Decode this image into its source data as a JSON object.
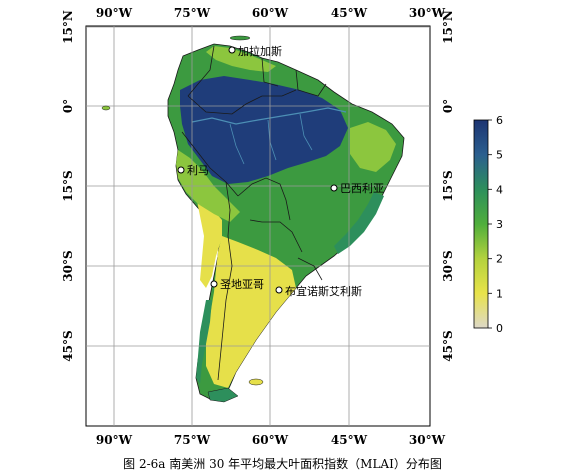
{
  "figure": {
    "caption": "图 2-6a 南美洲 30 年平均最大叶面积指数（MLAI）分布图"
  },
  "map": {
    "lon_ticks": [
      "90°W",
      "75°W",
      "60°W",
      "45°W",
      "30°W"
    ],
    "lat_ticks": [
      "15°N",
      "0°",
      "15°S",
      "30°S",
      "45°S"
    ],
    "cities": [
      {
        "name": "加拉加斯"
      },
      {
        "name": "利马"
      },
      {
        "name": "巴西利亚"
      },
      {
        "name": "圣地亚哥"
      },
      {
        "name": "布宜诺斯艾利斯"
      }
    ],
    "colorbar": {
      "ticks": [
        "0",
        "1",
        "2",
        "3",
        "4",
        "5",
        "6"
      ],
      "min": 0,
      "max": 6,
      "colors": [
        "#ddd8c8",
        "#e8e34a",
        "#b4d23e",
        "#4fae3c",
        "#2d8f5c",
        "#2b5f8f",
        "#1c3472"
      ]
    },
    "colors": {
      "land_dark_blue": "#1f3d7a",
      "land_mid_blue": "#2f6a8a",
      "land_green": "#3c9a40",
      "land_light_green": "#8cc63e",
      "land_yellow": "#e6e04a",
      "grid": "#9a9a9a",
      "border": "#1a1a1a"
    }
  }
}
